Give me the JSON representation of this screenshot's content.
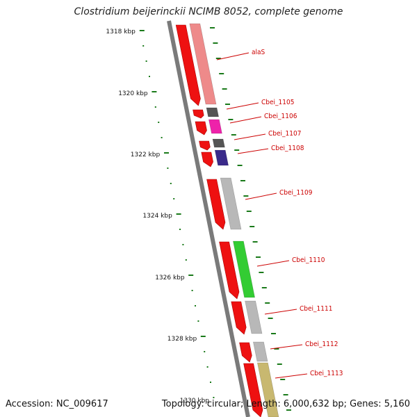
{
  "title": "Clostridium beijerinckii NCIMB 8052, complete genome",
  "accession_label": "Accession: NC_009617",
  "summary_label": "Topology: circular; Length: 6,000,632 bp; Genes: 5,160",
  "ruler": {
    "ticks": [
      {
        "label": "1318 kbp",
        "kbp": 1318
      },
      {
        "label": "1320 kbp",
        "kbp": 1320
      },
      {
        "label": "1322 kbp",
        "kbp": 1322
      },
      {
        "label": "1324 kbp",
        "kbp": 1324
      },
      {
        "label": "1326 kbp",
        "kbp": 1326
      },
      {
        "label": "1328 kbp",
        "kbp": 1328
      },
      {
        "label": "1330 kbp",
        "kbp": 1330
      }
    ]
  },
  "colors": {
    "backbone": "#7a7a7a",
    "ruler_tick": "#1a7a1a",
    "gene_label": "#cc0000",
    "cds_strand": "#ee1111",
    "alaS": "#ee8a8a",
    "Cbei_1105": "#555555",
    "Cbei_1106": "#ee22aa",
    "Cbei_1107": "#555555",
    "Cbei_1108": "#3a2a8a",
    "Cbei_1109": "#b8b8b8",
    "Cbei_1110": "#33cc33",
    "Cbei_1111": "#b8b8b8",
    "Cbei_1112": "#b8b8b8",
    "Cbei_1113": "#c8b870"
  },
  "genes": [
    {
      "name": "alaS",
      "color_key": "alaS"
    },
    {
      "name": "Cbei_1105",
      "color_key": "Cbei_1105"
    },
    {
      "name": "Cbei_1106",
      "color_key": "Cbei_1106"
    },
    {
      "name": "Cbei_1107",
      "color_key": "Cbei_1107"
    },
    {
      "name": "Cbei_1108",
      "color_key": "Cbei_1108"
    },
    {
      "name": "Cbei_1109",
      "color_key": "Cbei_1109"
    },
    {
      "name": "Cbei_1110",
      "color_key": "Cbei_1110"
    },
    {
      "name": "Cbei_1111",
      "color_key": "Cbei_1111"
    },
    {
      "name": "Cbei_1112",
      "color_key": "Cbei_1112"
    },
    {
      "name": "Cbei_1113",
      "color_key": "Cbei_1113"
    }
  ]
}
